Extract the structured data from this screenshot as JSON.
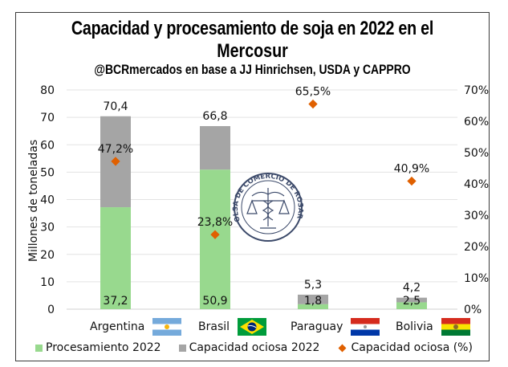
{
  "title": {
    "line1": "Capacidad y procesamiento de soja en 2022 en el",
    "line2": "Mercosur",
    "subtitle": "@BCRmercados en base a JJ Hinrichsen, USDA y CAPPRO"
  },
  "watermark": {
    "text": "BOLSA DE COMERCIO DE ROSARIO",
    "icon": "caduceus-scales-seal-icon"
  },
  "chart_data": {
    "type": "bar",
    "stacked": true,
    "title": "Capacidad y procesamiento de soja en 2022 en el Mercosur",
    "subtitle": "@BCRmercados en base a JJ Hinrichsen, USDA y CAPPRO",
    "categories": [
      "Argentina",
      "Brasil",
      "Paraguay",
      "Bolivia"
    ],
    "series": [
      {
        "name": "Procesamiento 2022",
        "type": "bar",
        "axis": "left",
        "color": "#98d98e",
        "values": [
          37.2,
          50.9,
          1.8,
          2.5
        ],
        "labels": [
          "37,2",
          "50,9",
          "1,8",
          "2,5"
        ]
      },
      {
        "name": "Capacidad ociosa 2022",
        "type": "bar",
        "axis": "left",
        "color": "#a5a5a5",
        "values": [
          33.2,
          15.9,
          3.5,
          1.7
        ],
        "totals": [
          70.4,
          66.8,
          5.3,
          4.2
        ],
        "total_labels": [
          "70,4",
          "66,8",
          "5,3",
          "4,2"
        ]
      },
      {
        "name": "Capacidad ociosa (%)",
        "type": "scatter",
        "axis": "right",
        "color": "#e06000",
        "values": [
          47.2,
          23.8,
          65.5,
          40.9
        ],
        "labels": [
          "47,2%",
          "23,8%",
          "65,5%",
          "40,9%"
        ]
      }
    ],
    "ylabel": "Millones de toneladas",
    "ylim": [
      0,
      80
    ],
    "yticks": [
      "0",
      "10",
      "20",
      "30",
      "40",
      "50",
      "60",
      "70",
      "80"
    ],
    "y2lim": [
      0,
      70
    ],
    "y2ticks": [
      "0%",
      "10%",
      "20%",
      "30%",
      "40%",
      "50%",
      "60%",
      "70%"
    ],
    "grid": true,
    "legend": [
      "Procesamiento 2022",
      "Capacidad ociosa 2022",
      "Capacidad ociosa (%)"
    ],
    "legend_position": "bottom"
  },
  "flags": [
    "argentina-flag-icon",
    "brasil-flag-icon",
    "paraguay-flag-icon",
    "bolivia-flag-icon"
  ]
}
